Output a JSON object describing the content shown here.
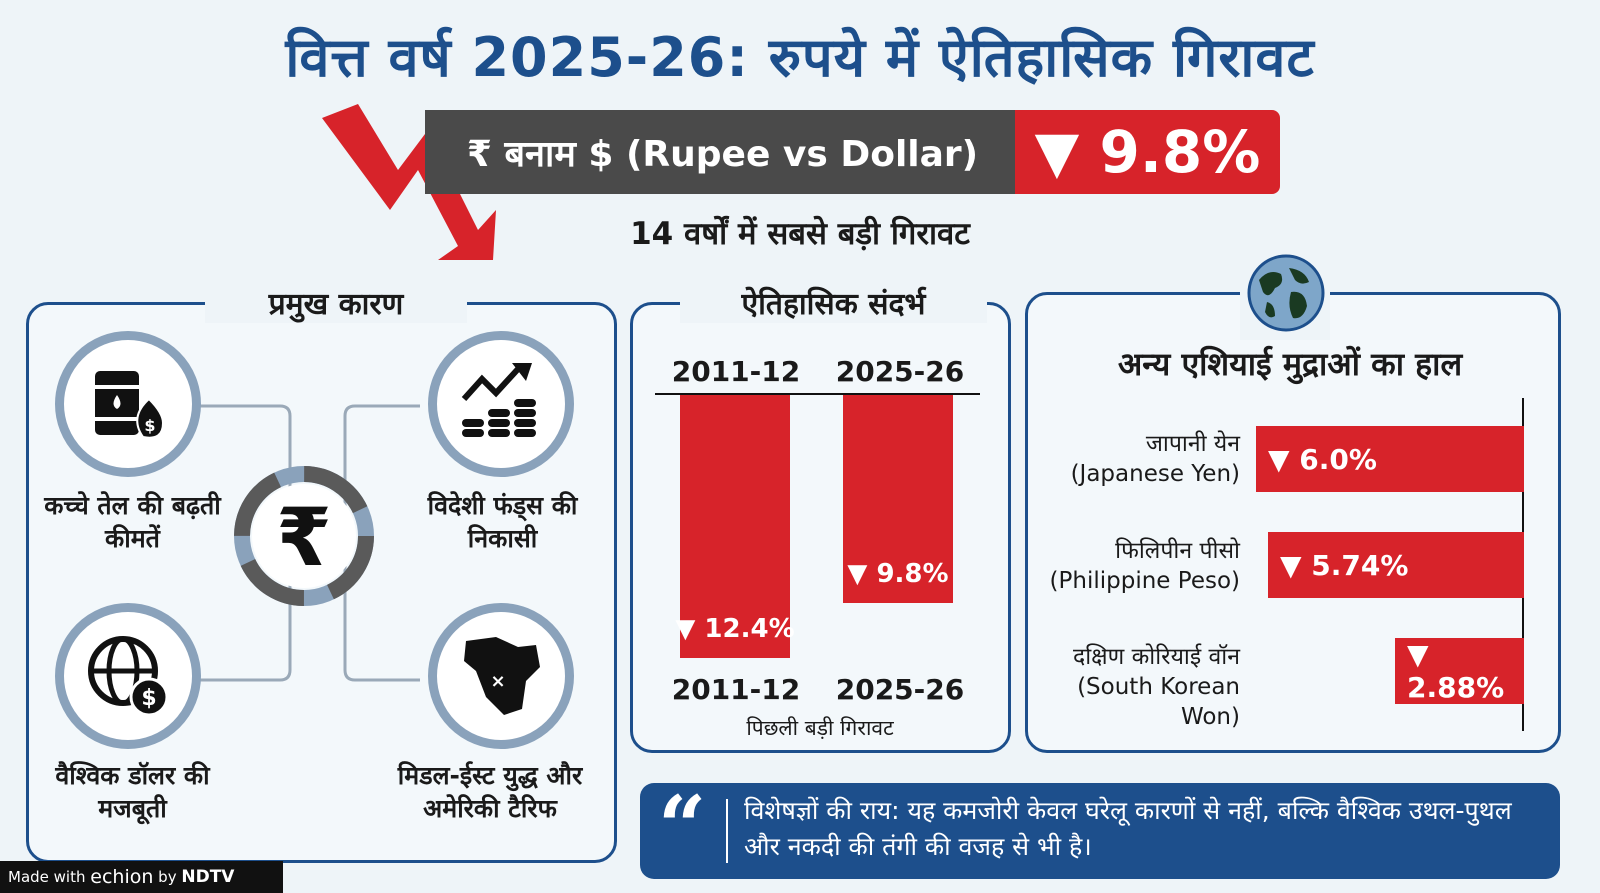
{
  "title": "वित्त वर्ष 2025-26: रुपये में ऐतिहासिक गिरावट",
  "banner": {
    "label": "₹ बनाम $ (Rupee vs Dollar)",
    "value": "▼ 9.8%"
  },
  "subtitle": "14 वर्षों में सबसे बड़ी गिरावट",
  "colors": {
    "navy": "#1d4f8c",
    "red": "#d7232a",
    "grey": "#4a4a4a"
  },
  "causes": {
    "title": "प्रमुख कारण",
    "items": [
      {
        "icon": "oil-barrel-icon",
        "label": "कच्चे तेल की बढ़ती कीमतें"
      },
      {
        "icon": "rising-coins-icon",
        "label": "विदेशी फंड्स की निकासी"
      },
      {
        "icon": "globe-dollar-icon",
        "label": "वैश्विक डॉलर की मजबूती"
      },
      {
        "icon": "middle-east-map-icon",
        "label": "मिडल-ईस्ट युद्ध और अमेरिकी टैरिफ"
      }
    ],
    "center_icon": "rupee-symbol-icon"
  },
  "history": {
    "title": "ऐतिहासिक संदर्भ",
    "headers": [
      "2011-12",
      "2025-26"
    ],
    "caption": "पिछली बड़ी गिरावट"
  },
  "asia": {
    "icon": "globe-icon",
    "title": "अन्य एशियाई मुद्राओं का हाल"
  },
  "quote": {
    "mark": "“",
    "text": "विशेषज्ञों की राय: यह कमजोरी केवल घरेलू कारणों से नहीं, बल्कि वैश्विक उथल-पुथल और नकदी की तंगी की वजह से भी है।"
  },
  "footer": {
    "made_with": "Made with",
    "brand": "echion",
    "by": "by",
    "partner": "NDTV"
  },
  "chart_data": [
    {
      "type": "bar",
      "title": "ऐतिहासिक संदर्भ",
      "categories": [
        "2011-12",
        "2025-26"
      ],
      "values": [
        12.4,
        9.8
      ],
      "labels": [
        "▼ 12.4%",
        "▼ 9.8%"
      ],
      "xlabel": "पिछली बड़ी गिरावट",
      "ylim": [
        0,
        12.4
      ]
    },
    {
      "type": "bar",
      "orientation": "horizontal",
      "title": "अन्य एशियाई मुद्राओं का हाल",
      "categories": [
        {
          "hi": "जापानी येन",
          "en": "(Japanese Yen)"
        },
        {
          "hi": "फिलिपीन पीसो",
          "en": "(Philippine Peso)"
        },
        {
          "hi": "दक्षिण कोरियाई वॉन",
          "en": "(South Korean Won)"
        }
      ],
      "values": [
        6.0,
        5.74,
        2.88
      ],
      "labels": [
        "▼ 6.0%",
        "▼ 5.74%",
        "▼ 2.88%"
      ],
      "xlim": [
        0,
        6.0
      ]
    }
  ]
}
